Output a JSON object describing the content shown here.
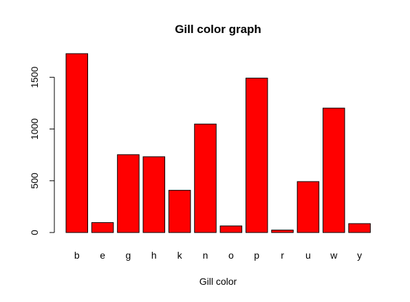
{
  "chart_data": {
    "type": "bar",
    "title": "Gill color graph",
    "xlabel": "Gill color",
    "ylabel": "",
    "categories": [
      "b",
      "e",
      "g",
      "h",
      "k",
      "n",
      "o",
      "p",
      "r",
      "u",
      "w",
      "y"
    ],
    "values": [
      1728,
      96,
      752,
      732,
      408,
      1048,
      64,
      1492,
      24,
      492,
      1202,
      86
    ],
    "ylim": [
      0,
      1728
    ],
    "yticks": [
      0,
      500,
      1000,
      1500
    ],
    "ytick_labels": [
      "0",
      "500",
      "1000",
      "1500"
    ],
    "grid": false,
    "bar_fill": "#ff0000",
    "bar_stroke": "#000000"
  }
}
